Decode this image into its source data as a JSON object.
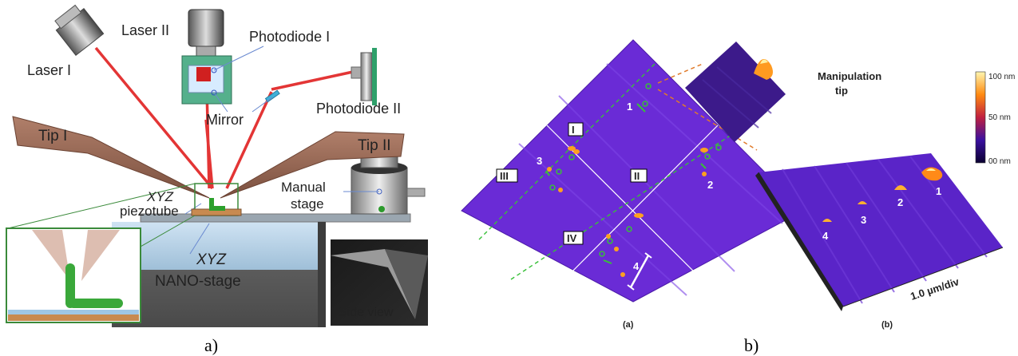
{
  "panel_a": {
    "caption": "a)",
    "labels": {
      "laser1": "Laser I",
      "laser2": "Laser II",
      "photodiode1": "Photodiode I",
      "photodiode2": "Photodiode II",
      "mirror": "Mirror",
      "tip1": "Tip I",
      "tip2": "Tip II",
      "xyz_piezo_italic": "XYZ",
      "xyz_piezo_rest": "piezotube",
      "manual_stage_1": "Manual",
      "manual_stage_2": "stage",
      "nano_stage_xyz": "XYZ",
      "nano_stage_rest": "NANO-stage",
      "side_view": "Side view"
    }
  },
  "panel_b": {
    "caption": "b)",
    "sub_a": "(a)",
    "sub_b": "(b)",
    "quadrants": [
      "I",
      "II",
      "III",
      "IV"
    ],
    "particle_labels_left": [
      "1",
      "2",
      "3",
      "4"
    ],
    "particle_labels_right": [
      "1",
      "2",
      "3",
      "4"
    ],
    "manipulation_line1": "Manipulation",
    "manipulation_line2": "tip",
    "axis_label": "1.0 µm/div",
    "colorbar": [
      "100 nm",
      "50 nm",
      "00 nm"
    ],
    "colors": {
      "afm_purple": "#6a2bd6",
      "tip_green": "#2ca02c",
      "dashed_orange": "#e07a2a"
    }
  }
}
